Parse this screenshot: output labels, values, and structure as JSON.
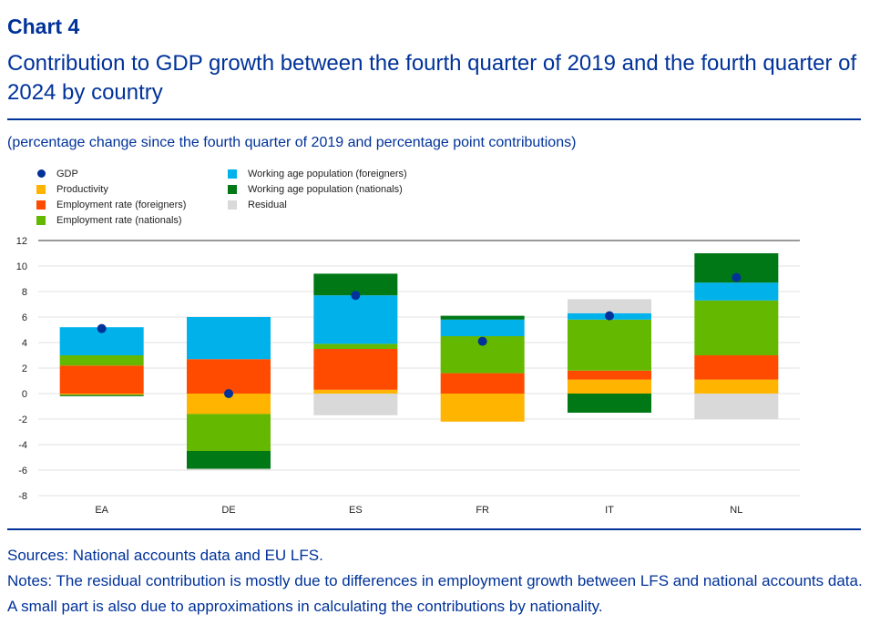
{
  "header": {
    "label": "Chart 4",
    "title": "Contribution to GDP growth between the fourth quarter of 2019 and the fourth quarter of 2024 by country",
    "subtitle": "(percentage change since the fourth quarter of 2019 and percentage point contributions)"
  },
  "legend": {
    "gdp": "GDP",
    "productivity": "Productivity",
    "emp_foreigners": "Employment rate (foreigners)",
    "emp_nationals": "Employment rate (nationals)",
    "wap_foreigners": "Working age population (foreigners)",
    "wap_nationals": "Working age population (nationals)",
    "residual": "Residual"
  },
  "colors": {
    "gdp": "#003299",
    "productivity": "#ffb400",
    "emp_foreigners": "#ff4b00",
    "emp_nationals": "#65b800",
    "wap_foreigners": "#00b1ea",
    "wap_nationals": "#007816",
    "residual": "#d9d9d9"
  },
  "chart_data": {
    "type": "bar",
    "stacked": true,
    "categories": [
      "EA",
      "DE",
      "ES",
      "FR",
      "IT",
      "NL"
    ],
    "ylim": [
      -8,
      12
    ],
    "yticks": [
      "12",
      "10",
      "8",
      "6",
      "4",
      "2",
      "0",
      "-2",
      "-4",
      "-6",
      "-8"
    ],
    "ytick_values": [
      12,
      10,
      8,
      6,
      4,
      2,
      0,
      -2,
      -4,
      -6,
      -8
    ],
    "series": [
      {
        "name": "Productivity",
        "key": "productivity",
        "values": [
          -0.1,
          -1.6,
          0.3,
          -2.2,
          1.1,
          1.1
        ]
      },
      {
        "name": "Employment rate (foreigners)",
        "key": "emp_foreigners",
        "values": [
          2.2,
          2.7,
          3.2,
          1.6,
          0.7,
          1.9
        ]
      },
      {
        "name": "Employment rate (nationals)",
        "key": "emp_nationals",
        "values": [
          0.8,
          -2.9,
          0.4,
          2.9,
          4.0,
          4.3
        ]
      },
      {
        "name": "Working age population (foreigners)",
        "key": "wap_foreigners",
        "values": [
          2.2,
          3.3,
          3.8,
          1.3,
          0.5,
          1.4
        ]
      },
      {
        "name": "Working age population (nationals)",
        "key": "wap_nationals",
        "values": [
          -0.1,
          -1.4,
          1.7,
          0.3,
          -1.5,
          2.3
        ]
      },
      {
        "name": "Residual",
        "key": "residual",
        "values": [
          0.0,
          -0.1,
          -1.7,
          0.0,
          1.1,
          -2.0
        ]
      }
    ],
    "gdp": {
      "name": "GDP",
      "values": [
        5.1,
        0.0,
        7.7,
        4.1,
        6.1,
        9.1
      ]
    },
    "grid": "horizontal"
  },
  "footer": {
    "sources": "Sources: National accounts data and EU LFS.",
    "notes": "Notes: The residual contribution is mostly due to differences in employment growth between LFS and national accounts data. A small part is also due to approximations in calculating the contributions by nationality."
  }
}
